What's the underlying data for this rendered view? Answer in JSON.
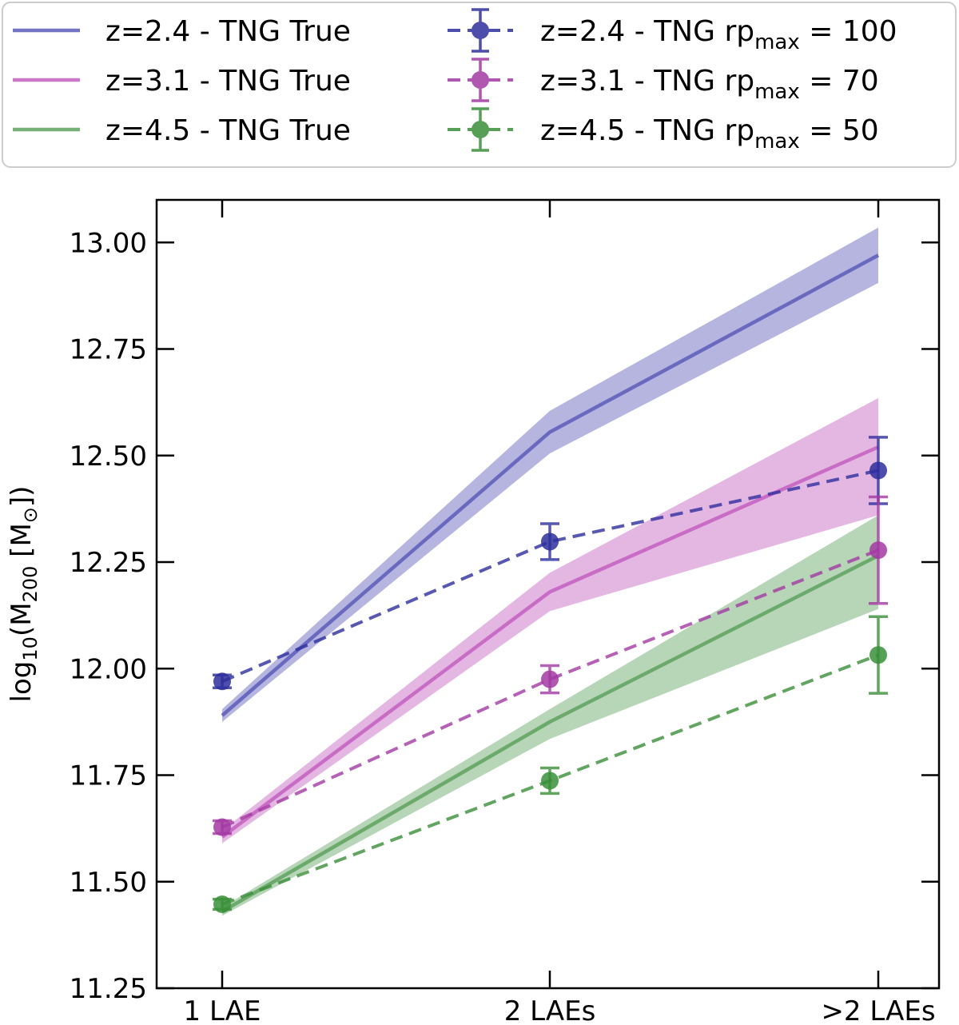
{
  "chart_data": {
    "type": "line",
    "title": "",
    "xlabel": "",
    "ylabel_parts": {
      "prefix": "log",
      "sub1": "10",
      "mid": "(M",
      "sub2": "200",
      "suffix_open": " [M",
      "sub3": "⊙",
      "suffix_close": "])"
    },
    "categories": [
      "1 LAE",
      "2 LAEs",
      ">2 LAEs"
    ],
    "ylim": [
      11.25,
      13.1
    ],
    "yticks": [
      11.25,
      11.5,
      11.75,
      12.0,
      12.25,
      12.5,
      12.75,
      13.0
    ],
    "ytick_labels": [
      "11.25",
      "11.50",
      "11.75",
      "12.00",
      "12.25",
      "12.50",
      "12.75",
      "13.00"
    ],
    "true_series": [
      {
        "name": "z=2.4 - TNG True",
        "color": "#5c5cba",
        "values": [
          11.89,
          12.555,
          12.97
        ],
        "lower": [
          11.875,
          12.505,
          12.905
        ],
        "upper": [
          11.905,
          12.605,
          13.035
        ]
      },
      {
        "name": "z=3.1 - TNG True",
        "color": "#c35fc0",
        "values": [
          11.605,
          12.18,
          12.52
        ],
        "lower": [
          11.59,
          12.135,
          12.36
        ],
        "upper": [
          11.62,
          12.225,
          12.635
        ]
      },
      {
        "name": "z=4.5 - TNG True",
        "color": "#5fa25f",
        "values": [
          11.43,
          11.875,
          12.265
        ],
        "lower": [
          11.42,
          11.835,
          12.14
        ],
        "upper": [
          11.44,
          11.905,
          12.36
        ]
      }
    ],
    "rp_series": [
      {
        "name_prefix": "z=2.4 - TNG rp",
        "name_sub": "max",
        "name_suffix": " = 100",
        "color": "#2e2e9e",
        "values": [
          11.97,
          12.298,
          12.465
        ],
        "errors": [
          0.015,
          0.042,
          0.078
        ]
      },
      {
        "name_prefix": "z=3.1 - TNG rp",
        "name_sub": "max",
        "name_suffix": " = 70",
        "color": "#a33aa3",
        "values": [
          11.628,
          11.975,
          12.278
        ],
        "errors": [
          0.015,
          0.032,
          0.125
        ]
      },
      {
        "name_prefix": "z=4.5 - TNG rp",
        "name_sub": "max",
        "name_suffix": " = 50",
        "color": "#3a8f3a",
        "values": [
          11.447,
          11.737,
          12.032
        ],
        "errors": [
          0.012,
          0.03,
          0.09
        ]
      }
    ]
  }
}
